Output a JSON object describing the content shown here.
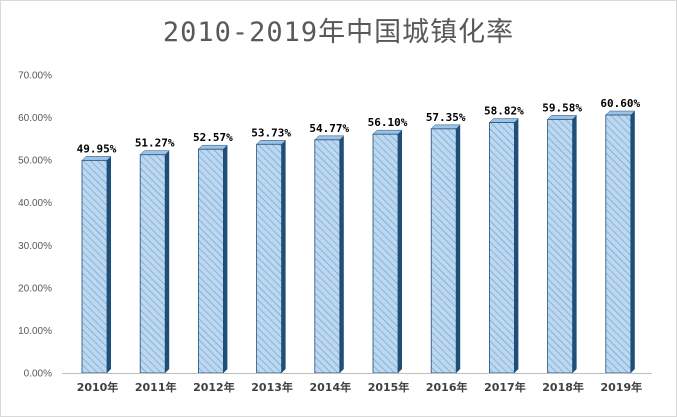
{
  "colors": {
    "bar_fill": "#bdd7ee",
    "bar_hatch": "#5b9bd5",
    "bar_top": "#9cc3e5",
    "bar_side": "#1f4e79",
    "axis": "#bfbfbf",
    "title": "#595959"
  },
  "chart_data": {
    "type": "bar",
    "title": "2010-2019年中国城镇化率",
    "xlabel": "",
    "ylabel": "",
    "categories": [
      "2010年",
      "2011年",
      "2012年",
      "2013年",
      "2014年",
      "2015年",
      "2016年",
      "2017年",
      "2018年",
      "2019年"
    ],
    "values": [
      49.95,
      51.27,
      52.57,
      53.73,
      54.77,
      56.1,
      57.35,
      58.82,
      59.58,
      60.6
    ],
    "data_labels": [
      "49.95%",
      "51.27%",
      "52.57%",
      "53.73%",
      "54.77%",
      "56.10%",
      "57.35%",
      "58.82%",
      "59.58%",
      "60.60%"
    ],
    "ylim": [
      0,
      70
    ],
    "yticks": [
      0,
      10,
      20,
      30,
      40,
      50,
      60,
      70
    ],
    "ytick_labels": [
      "0.00%",
      "10.00%",
      "20.00%",
      "30.00%",
      "40.00%",
      "50.00%",
      "60.00%",
      "70.00%"
    ],
    "grid": false,
    "legend": "none",
    "style": "3d-hatched"
  }
}
